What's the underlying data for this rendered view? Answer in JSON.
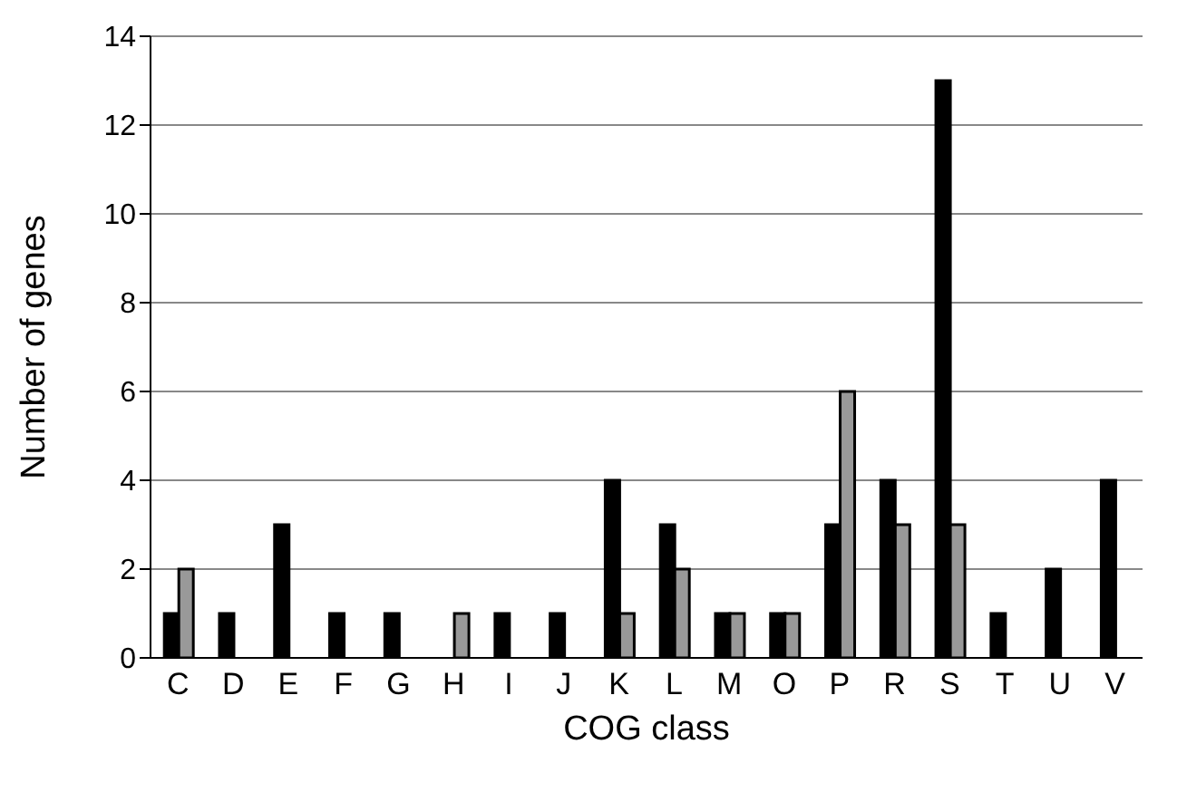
{
  "chart_data": {
    "type": "bar",
    "xlabel": "COG class",
    "ylabel": "Number of genes",
    "categories": [
      "C",
      "D",
      "E",
      "F",
      "G",
      "H",
      "I",
      "J",
      "K",
      "L",
      "M",
      "O",
      "P",
      "R",
      "S",
      "T",
      "U",
      "V"
    ],
    "series": [
      {
        "color": "#000000",
        "values": [
          1,
          1,
          3,
          1,
          1,
          0,
          1,
          1,
          4,
          3,
          1,
          1,
          3,
          4,
          13,
          1,
          2,
          4
        ]
      },
      {
        "color": "#999999",
        "values": [
          2,
          0,
          0,
          0,
          0,
          1,
          0,
          0,
          1,
          2,
          1,
          1,
          6,
          3,
          3,
          0,
          0,
          0
        ]
      }
    ],
    "ylim": [
      0,
      14
    ],
    "yticks": [
      0,
      2,
      4,
      6,
      8,
      10,
      12,
      14
    ],
    "grid": "y",
    "legend": false
  }
}
